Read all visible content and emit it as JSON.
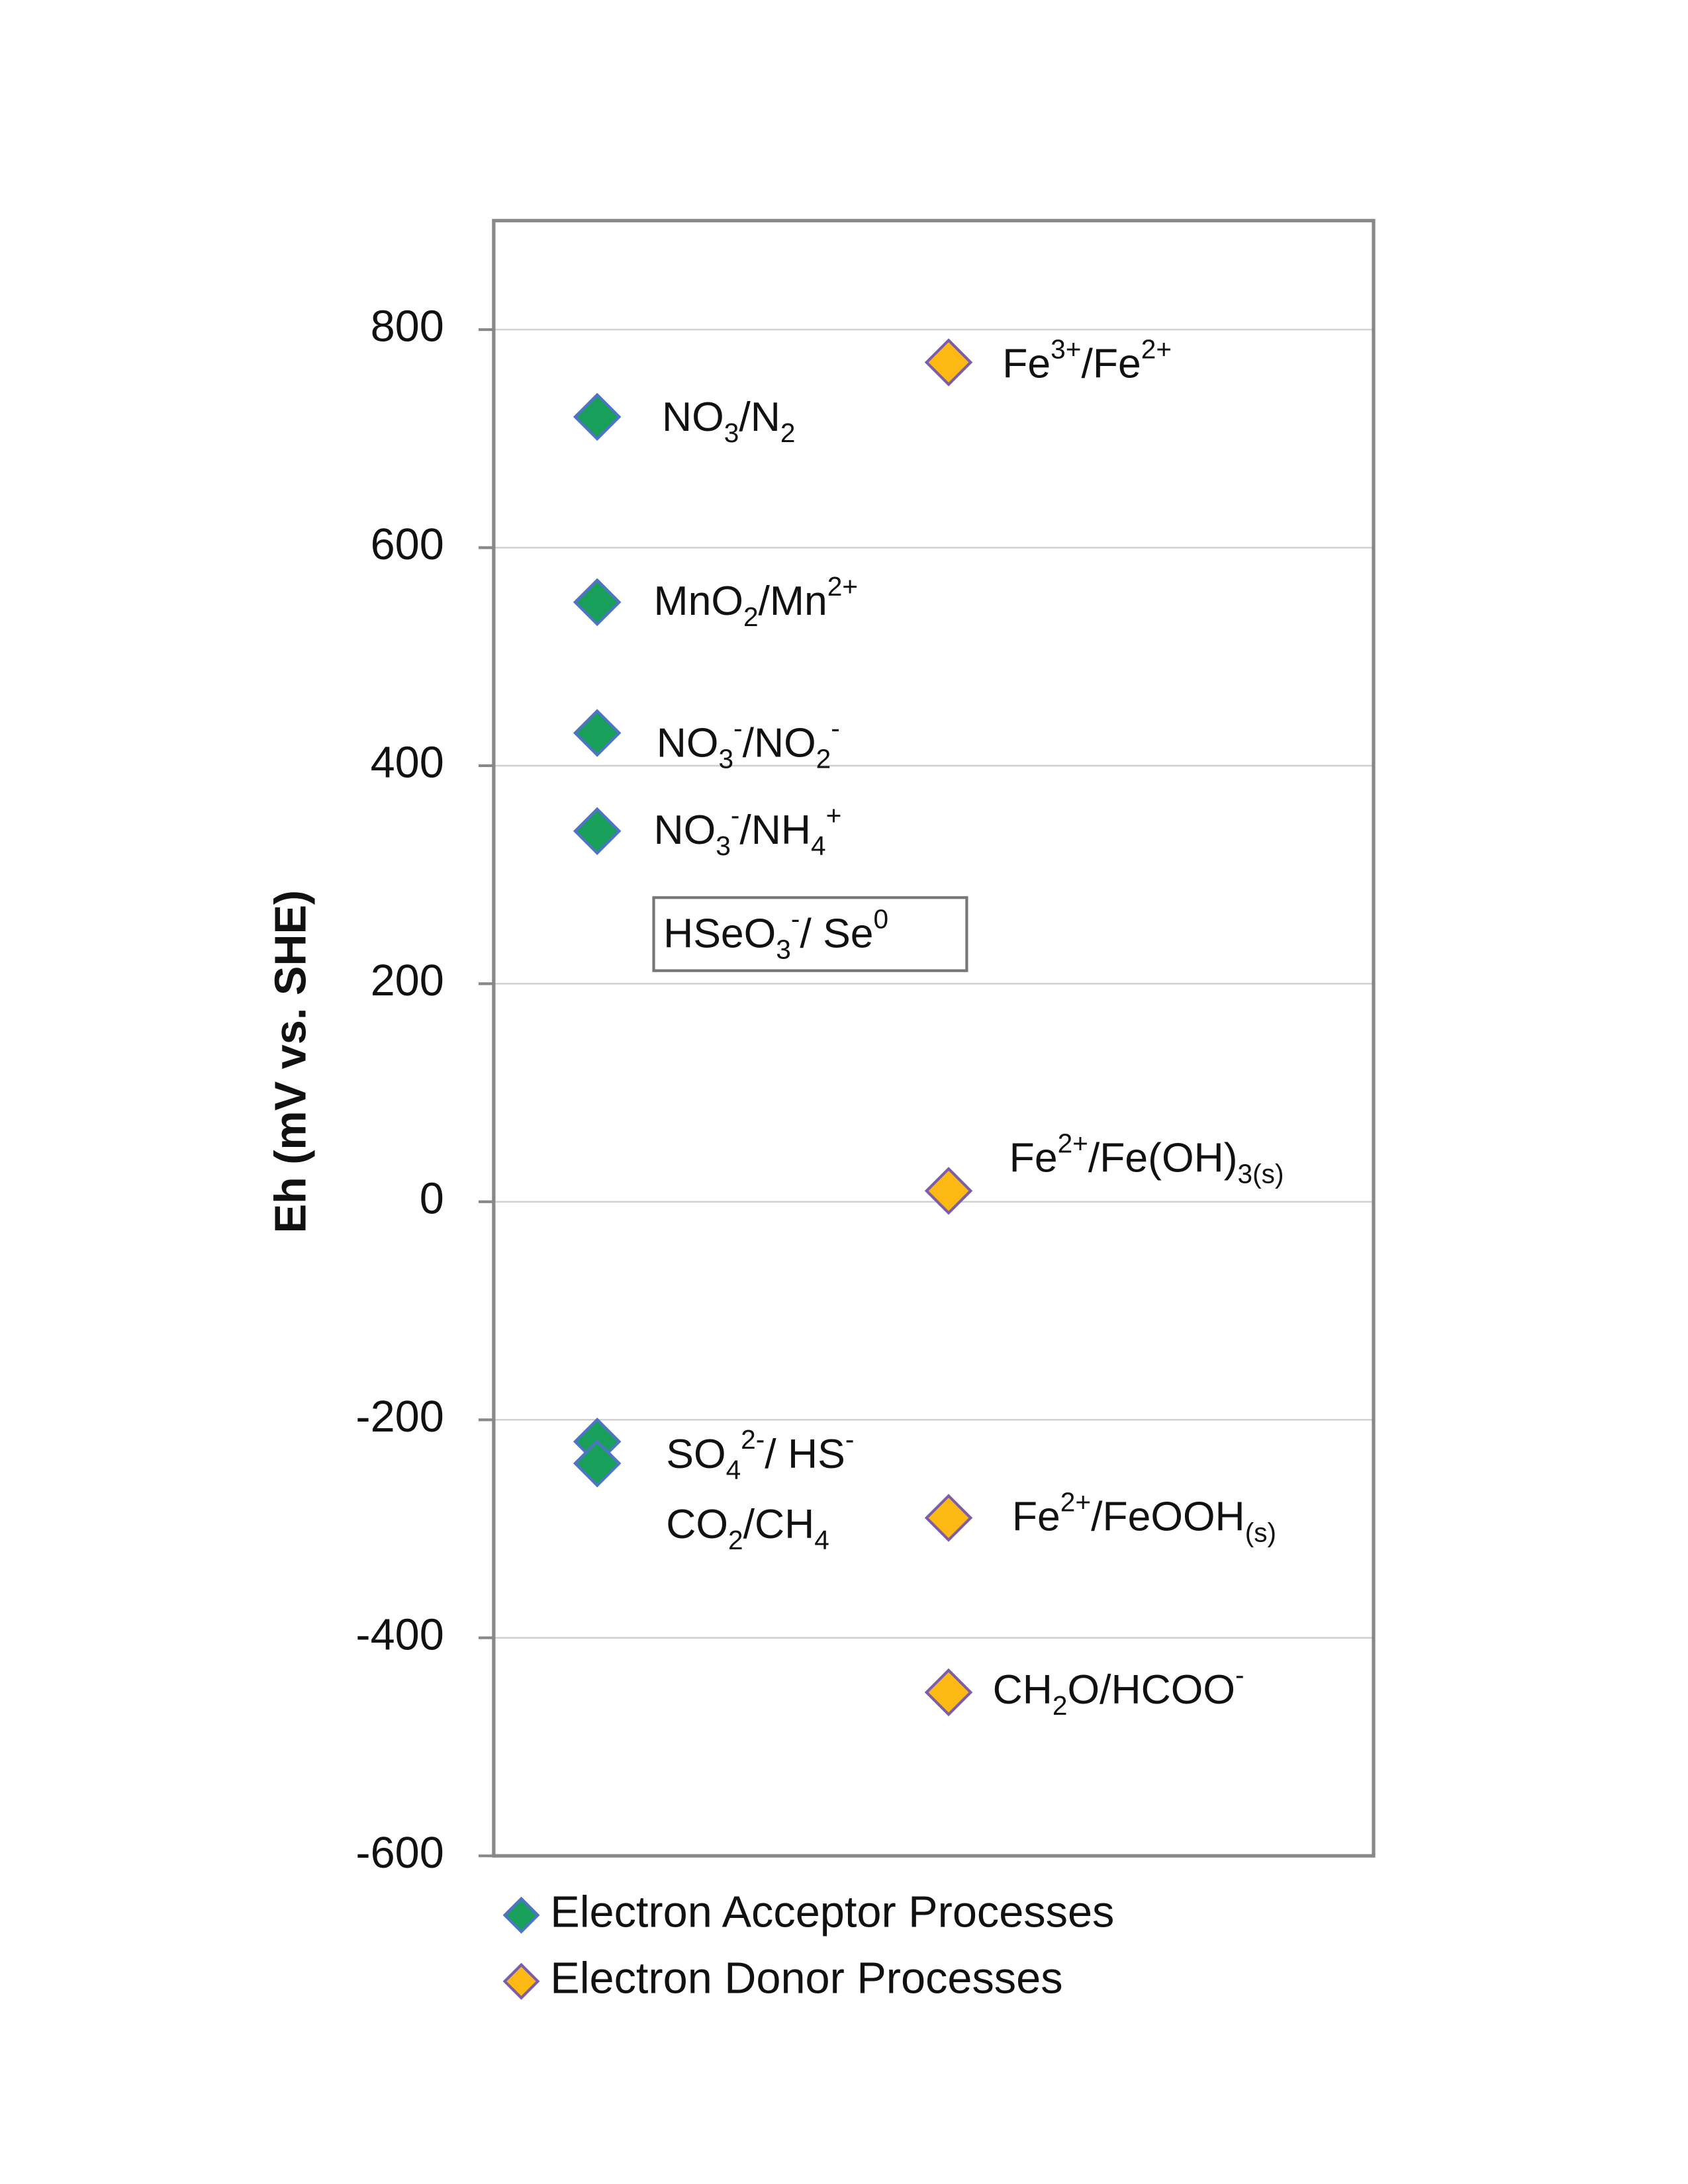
{
  "chart_data": {
    "type": "scatter",
    "ylabel": "Eh (mV vs. SHE)",
    "ylim": [
      -600,
      900
    ],
    "yticks": [
      -600,
      -400,
      -200,
      0,
      200,
      400,
      600,
      800
    ],
    "grid": true,
    "series": [
      {
        "name": "Electron Acceptor Processes",
        "color": "#18a05a",
        "edgecolor": "#4f73c6",
        "values": [
          720,
          550,
          430,
          340,
          -220,
          -240
        ],
        "labels": [
          [
            {
              "t": "NO"
            },
            {
              "t": "3",
              "s": "sub"
            },
            {
              "t": "/N"
            },
            {
              "t": "2",
              "s": "sub"
            }
          ],
          [
            {
              "t": "MnO"
            },
            {
              "t": "2",
              "s": "sub"
            },
            {
              "t": "/Mn"
            },
            {
              "t": "2+",
              "s": "sup"
            }
          ],
          [
            {
              "t": "NO"
            },
            {
              "t": "3",
              "s": "sub"
            },
            {
              "t": "-",
              "s": "sup"
            },
            {
              "t": "/NO"
            },
            {
              "t": "2",
              "s": "sub"
            },
            {
              "t": "-",
              "s": "sup"
            }
          ],
          [
            {
              "t": "NO"
            },
            {
              "t": "3",
              "s": "sub"
            },
            {
              "t": "-",
              "s": "sup"
            },
            {
              "t": "/NH"
            },
            {
              "t": "4",
              "s": "sub"
            },
            {
              "t": "+",
              "s": "sup"
            }
          ],
          [
            {
              "t": "SO"
            },
            {
              "t": "4",
              "s": "sub"
            },
            {
              "t": "2-",
              "s": "sup"
            },
            {
              "t": "/ HS"
            },
            {
              "t": "-",
              "s": "sup"
            }
          ],
          [
            {
              "t": "CO"
            },
            {
              "t": "2",
              "s": "sub"
            },
            {
              "t": "/CH"
            },
            {
              "t": "4",
              "s": "sub"
            }
          ]
        ]
      },
      {
        "name": "Electron Donor Processes",
        "color": "#fdb913",
        "edgecolor": "#7b5ea7",
        "values": [
          770,
          10,
          -290,
          -450
        ],
        "labels": [
          [
            {
              "t": "Fe"
            },
            {
              "t": "3+",
              "s": "sup"
            },
            {
              "t": "/Fe"
            },
            {
              "t": "2+",
              "s": "sup"
            }
          ],
          [
            {
              "t": "Fe"
            },
            {
              "t": "2+",
              "s": "sup"
            },
            {
              "t": "/Fe(OH)"
            },
            {
              "t": "3(s)",
              "s": "sub"
            }
          ],
          [
            {
              "t": "Fe"
            },
            {
              "t": "2+",
              "s": "sup"
            },
            {
              "t": "/FeOOH"
            },
            {
              "t": "(s)",
              "s": "sub"
            }
          ],
          [
            {
              "t": "CH"
            },
            {
              "t": "2",
              "s": "sub"
            },
            {
              "t": "O/HCOO"
            },
            {
              "t": "-",
              "s": "sup"
            }
          ]
        ]
      }
    ],
    "annotations": [
      [
        {
          "t": "HSeO"
        },
        {
          "t": "3",
          "s": "sub"
        },
        {
          "t": "-",
          "s": "sup"
        },
        {
          "t": "/ Se"
        },
        {
          "t": "0",
          "s": "sup"
        }
      ]
    ]
  }
}
